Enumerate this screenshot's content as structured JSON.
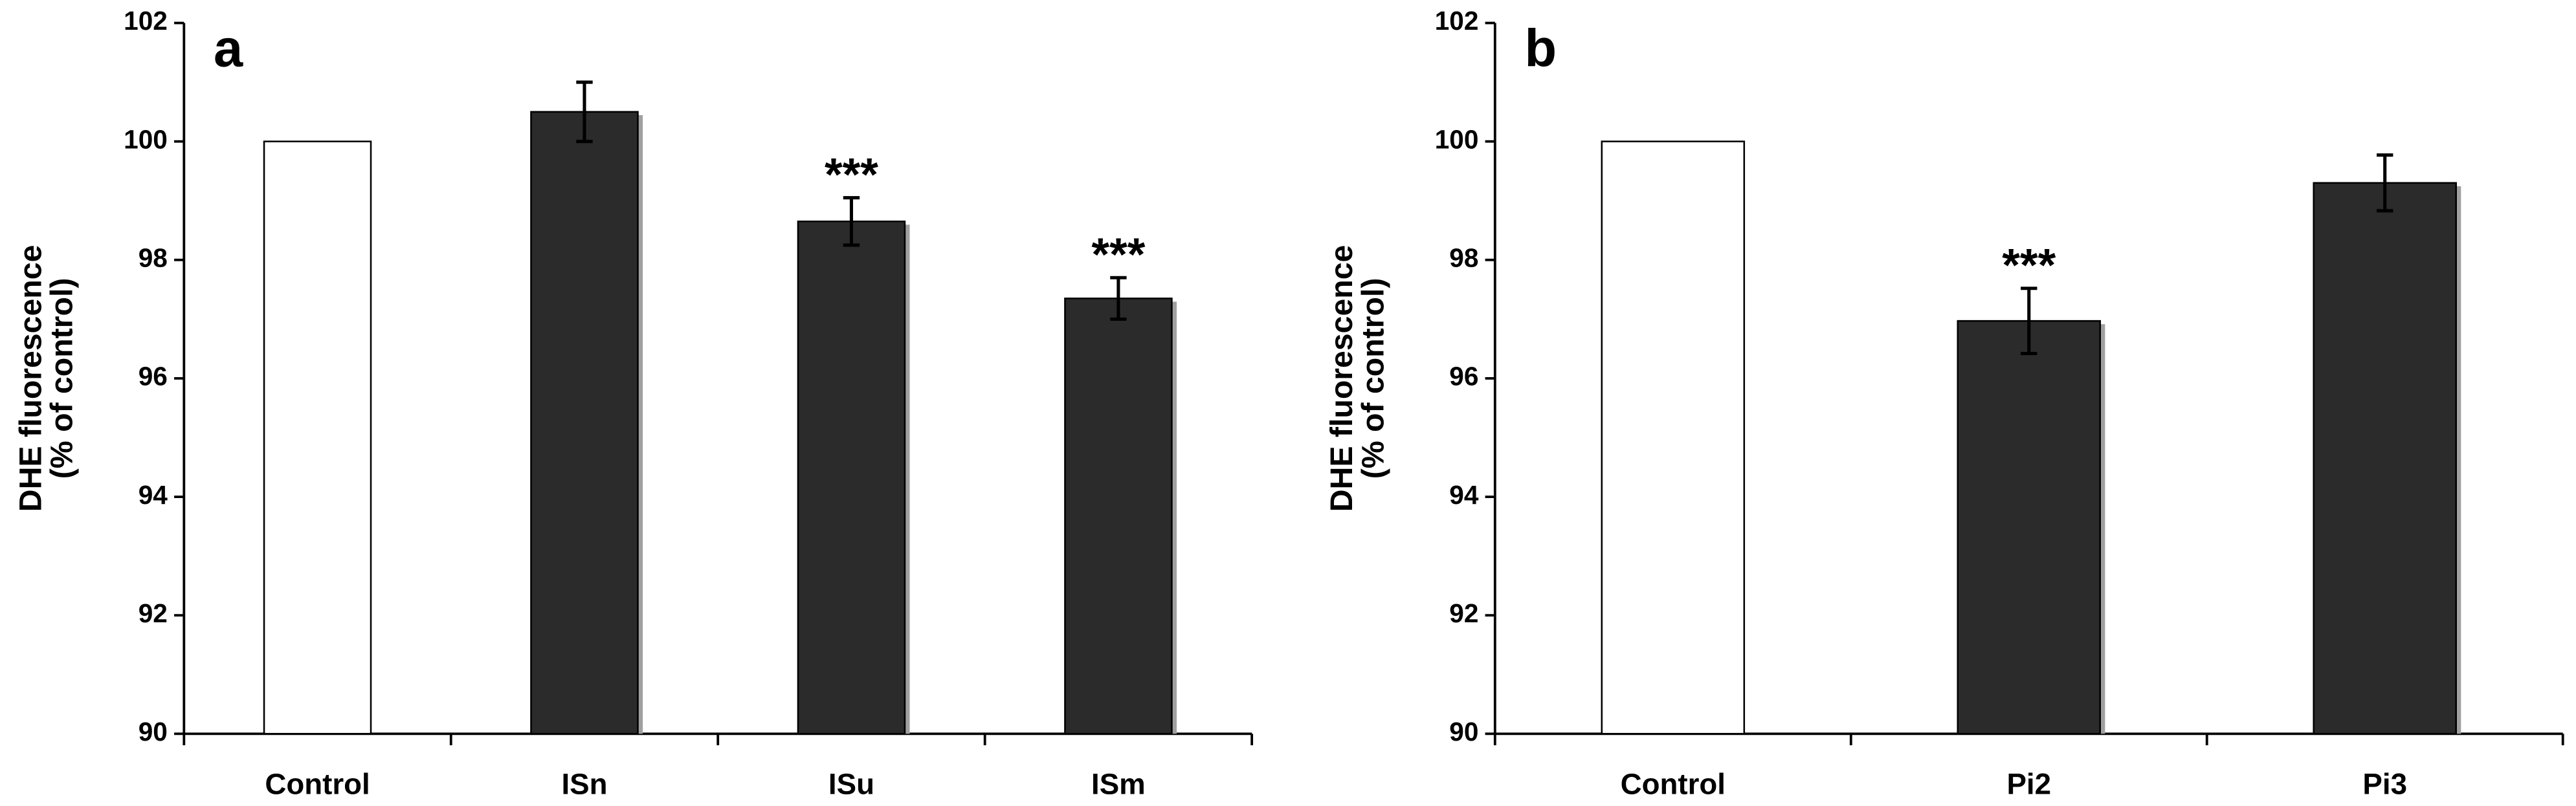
{
  "chart_data": [
    {
      "type": "bar",
      "panel_label": "a",
      "ylabel": [
        "DHE fluorescence",
        "(% of control)"
      ],
      "categories": [
        "Control",
        "ISn",
        "ISu",
        "ISm"
      ],
      "values": [
        100,
        100.5,
        98.65,
        97.35
      ],
      "errors": [
        null,
        0.5,
        0.4,
        0.35
      ],
      "colors": [
        "#ffffff",
        "#2b2b2b",
        "#2b2b2b",
        "#2b2b2b"
      ],
      "annotations": [
        null,
        null,
        "***",
        "***"
      ],
      "ylim": [
        90,
        102
      ],
      "yticks": [
        90,
        92,
        94,
        96,
        98,
        100,
        102
      ],
      "grid": false
    },
    {
      "type": "bar",
      "panel_label": "b",
      "ylabel": [
        "DHE fluorescence",
        "(% of control)"
      ],
      "categories": [
        "Control",
        "Pi2",
        "Pi3"
      ],
      "values": [
        100,
        96.97,
        99.3
      ],
      "errors": [
        null,
        0.55,
        0.47
      ],
      "colors": [
        "#ffffff",
        "#2b2b2b",
        "#2b2b2b"
      ],
      "annotations": [
        null,
        "***",
        null
      ],
      "ylim": [
        90,
        102
      ],
      "yticks": [
        90,
        92,
        94,
        96,
        98,
        100,
        102
      ],
      "grid": false
    }
  ]
}
